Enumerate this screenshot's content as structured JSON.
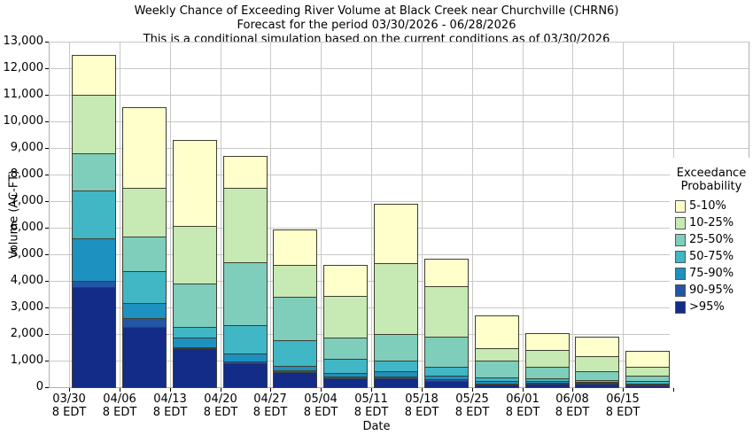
{
  "chart_data": {
    "type": "bar",
    "stacked": true,
    "title": "Weekly Chance of Exceeding River Volume at Black Creek near Churchville (CHRN6)",
    "subtitle": "Forecast for the period 03/30/2026 - 06/28/2026",
    "note": "This is a conditional simulation based on the current conditions as of 03/30/2026",
    "xlabel": "Date",
    "ylabel": "Volume (AC-FT)",
    "ylim": [
      0,
      13000
    ],
    "ytick_step": 1000,
    "grid": true,
    "legend_position": "right",
    "legend_title_lines": [
      "Exceedance",
      "Probability"
    ],
    "categories": [
      "03/30",
      "04/06",
      "04/13",
      "04/20",
      "04/27",
      "05/04",
      "05/11",
      "05/18",
      "05/25",
      "06/01",
      "06/08",
      "06/15"
    ],
    "category_sublabel": "8 EDT",
    "series": [
      {
        "name": ">95%",
        "color": "#132C87",
        "values": [
          3780,
          2250,
          1450,
          900,
          580,
          330,
          330,
          230,
          110,
          135,
          120,
          80
        ]
      },
      {
        "name": "90-95%",
        "color": "#2456A6",
        "values": [
          220,
          350,
          50,
          80,
          60,
          70,
          80,
          60,
          35,
          30,
          30,
          30
        ]
      },
      {
        "name": "75-90%",
        "color": "#1D91C0",
        "values": [
          1600,
          550,
          370,
          270,
          170,
          130,
          180,
          130,
          85,
          65,
          40,
          35
        ]
      },
      {
        "name": "50-75%",
        "color": "#41B6C4",
        "values": [
          1800,
          1200,
          380,
          1080,
          970,
          540,
          410,
          360,
          140,
          110,
          90,
          75
        ]
      },
      {
        "name": "25-50%",
        "color": "#7FCDBB",
        "values": [
          1400,
          1300,
          1650,
          2370,
          1610,
          780,
          1000,
          1120,
          630,
          420,
          310,
          220
        ]
      },
      {
        "name": "10-25%",
        "color": "#C7E9B4",
        "values": [
          2200,
          1850,
          2150,
          2800,
          1210,
          1590,
          2650,
          1900,
          450,
          640,
          560,
          340
        ]
      },
      {
        "name": "5-10%",
        "color": "#FFFFCC",
        "values": [
          1450,
          3000,
          3200,
          1150,
          1300,
          1110,
          2200,
          1000,
          1200,
          600,
          700,
          550
        ]
      }
    ],
    "stack_totals": [
      12450,
      10500,
      9250,
      8650,
      5900,
      4550,
      6850,
      4800,
      2650,
      2000,
      1850,
      1330
    ],
    "colors": {
      "background": "#ffffff",
      "grid": "#c8c8c8",
      "plot_border": "#b0b0b0",
      "bar_border": "#3f3f30",
      "tick": "#000000",
      "text": "#000000"
    }
  }
}
